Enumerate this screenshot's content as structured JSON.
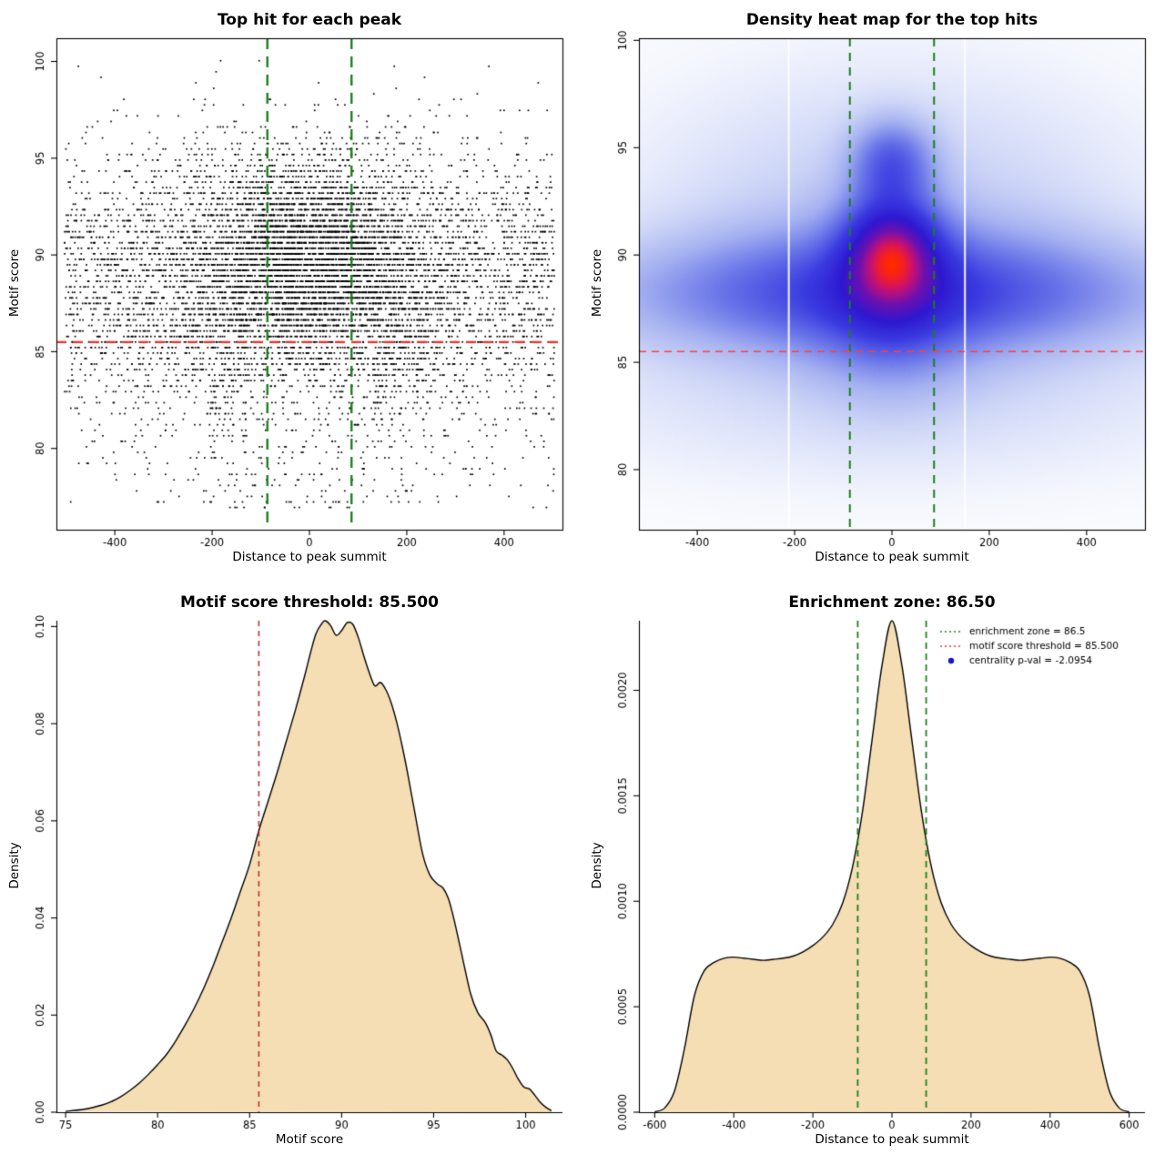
{
  "page": {
    "background": "#ffffff"
  },
  "chart_data": [
    {
      "id": "top-hits-scatter",
      "type": "scatter",
      "title": "Top hit for each peak",
      "xlabel": "Distance to peak summit",
      "ylabel": "Motif score",
      "xlim": [
        -520,
        520
      ],
      "ylim": [
        75.8,
        101.2
      ],
      "xticks": [
        -400,
        -200,
        0,
        200,
        400
      ],
      "yticks": [
        80,
        85,
        90,
        95,
        100
      ],
      "hlines": [
        {
          "y": 85.5,
          "color": "#ff2a2a",
          "dash": [
            11,
            7
          ],
          "width": 2.2
        }
      ],
      "vlines": [
        {
          "x": -86.5,
          "color": "#1e7e1e",
          "dash": [
            12,
            8
          ],
          "width": 2.4
        },
        {
          "x": 86.5,
          "color": "#1e7e1e",
          "dash": [
            12,
            8
          ],
          "width": 2.4
        }
      ],
      "points": {
        "n": 9500,
        "seed": 11,
        "marker_px": 1.7,
        "color": "#000000",
        "x_mix": {
          "uniform_frac": 0.44,
          "uniform_range": [
            -503,
            503
          ],
          "normal_sd": 150
        },
        "y_model": {
          "mean_center": 89.6,
          "sd_center": 2.8,
          "center_halfwidth": 130,
          "mean_outer": 88.8,
          "sd_outer": 3.4,
          "low_tail_frac": 0.055,
          "low_tail_range": [
            76.9,
            85.2
          ],
          "max": 100.15,
          "quantum": 0.285
        }
      }
    },
    {
      "id": "top-hits-heatmap",
      "type": "heatmap",
      "title": "Density heat map for the top hits",
      "xlabel": "Distance to peak summit",
      "ylabel": "Motif score",
      "xlim": [
        -520,
        520
      ],
      "ylim": [
        77.2,
        100.1
      ],
      "xticks": [
        -400,
        -200,
        0,
        200,
        400
      ],
      "yticks": [
        80,
        85,
        90,
        95,
        100
      ],
      "hlines": [
        {
          "y": 85.5,
          "color": "#ff4040",
          "dash": [
            8,
            6
          ],
          "width": 1.6
        }
      ],
      "vlines": [
        {
          "x": -86.5,
          "color": "#1e7e1e",
          "dash": [
            9,
            7
          ],
          "width": 2.0
        },
        {
          "x": 86.5,
          "color": "#1e7e1e",
          "dash": [
            9,
            7
          ],
          "width": 2.0
        }
      ],
      "white_streaks_x": [
        -212,
        150
      ],
      "kernels": [
        {
          "w": 0.55,
          "mx": 0,
          "sx": 300,
          "my": 88.4,
          "sy": 2.0
        },
        {
          "w": 0.3,
          "mx": 0,
          "sx": 430,
          "my": 88.2,
          "sy": 1.6
        },
        {
          "w": 1.0,
          "mx": 0,
          "sx": 70,
          "my": 89.9,
          "sy": 2.0
        },
        {
          "w": 0.55,
          "mx": 0,
          "sx": 58,
          "my": 90.3,
          "sy": 1.25
        },
        {
          "w": 0.6,
          "mx": 0,
          "sx": 55,
          "my": 94.3,
          "sy": 1.3
        },
        {
          "w": 0.25,
          "mx": 0,
          "sx": 110,
          "my": 86.3,
          "sy": 2.2
        },
        {
          "w": 0.18,
          "mx": 0,
          "sx": 330,
          "my": 91.5,
          "sy": 4.5
        },
        {
          "w": 0.1,
          "mx": 0,
          "sx": 480,
          "my": 84.0,
          "sy": 3.0
        }
      ],
      "gamma": 0.6,
      "colormap": [
        [
          0.0,
          "#ffffff"
        ],
        [
          0.06,
          "#f4f6fd"
        ],
        [
          0.16,
          "#d4dbf8"
        ],
        [
          0.3,
          "#a4b0f0"
        ],
        [
          0.44,
          "#6874e8"
        ],
        [
          0.58,
          "#3a3ae0"
        ],
        [
          0.72,
          "#2d18d0"
        ],
        [
          0.84,
          "#6c10b0"
        ],
        [
          0.92,
          "#c01078"
        ],
        [
          0.97,
          "#ee1c30"
        ],
        [
          1.0,
          "#ff2a00"
        ]
      ]
    },
    {
      "id": "motif-score-density",
      "type": "density",
      "title": "Motif score threshold: 85.500",
      "xlabel": "Motif score",
      "ylabel": "Density",
      "xlim": [
        74.5,
        102
      ],
      "ylim": [
        0,
        0.1012
      ],
      "xticks": [
        75,
        80,
        85,
        90,
        95,
        100
      ],
      "yticks": [
        0,
        0.02,
        0.04,
        0.06,
        0.08,
        0.1
      ],
      "ytick_labels": [
        "0.00",
        "0.02",
        "0.04",
        "0.06",
        "0.08",
        "0.10"
      ],
      "vlines": [
        {
          "x": 85.5,
          "color": "#bb3333",
          "dash": [
            6,
            5
          ],
          "width": 1.6
        }
      ],
      "fill": "#f5deb3",
      "stroke": "#000000",
      "curve": [
        [
          75,
          0.0002
        ],
        [
          76,
          0.0006
        ],
        [
          77,
          0.0015
        ],
        [
          77.5,
          0.0022
        ],
        [
          78,
          0.0032
        ],
        [
          78.5,
          0.0045
        ],
        [
          79,
          0.006
        ],
        [
          79.5,
          0.0078
        ],
        [
          80,
          0.0098
        ],
        [
          80.5,
          0.012
        ],
        [
          81,
          0.0148
        ],
        [
          81.5,
          0.018
        ],
        [
          82,
          0.0215
        ],
        [
          82.5,
          0.0255
        ],
        [
          83,
          0.03
        ],
        [
          83.5,
          0.035
        ],
        [
          84,
          0.04
        ],
        [
          84.5,
          0.0455
        ],
        [
          85,
          0.051
        ],
        [
          85.5,
          0.058
        ],
        [
          86,
          0.064
        ],
        [
          86.5,
          0.07
        ],
        [
          87,
          0.0765
        ],
        [
          87.5,
          0.083
        ],
        [
          88,
          0.09
        ],
        [
          88.3,
          0.0945
        ],
        [
          88.6,
          0.0985
        ],
        [
          88.9,
          0.1005
        ],
        [
          89.1,
          0.1012
        ],
        [
          89.4,
          0.1002
        ],
        [
          89.7,
          0.0982
        ],
        [
          90,
          0.0992
        ],
        [
          90.3,
          0.1008
        ],
        [
          90.6,
          0.1005
        ],
        [
          90.9,
          0.0978
        ],
        [
          91.2,
          0.094
        ],
        [
          91.5,
          0.0905
        ],
        [
          91.8,
          0.0878
        ],
        [
          92.1,
          0.0885
        ],
        [
          92.4,
          0.087
        ],
        [
          92.7,
          0.0842
        ],
        [
          93,
          0.0802
        ],
        [
          93.3,
          0.0752
        ],
        [
          93.6,
          0.0695
        ],
        [
          94,
          0.0612
        ],
        [
          94.4,
          0.0532
        ],
        [
          94.8,
          0.0488
        ],
        [
          95.2,
          0.047
        ],
        [
          95.5,
          0.0462
        ],
        [
          95.8,
          0.044
        ],
        [
          96.1,
          0.0398
        ],
        [
          96.5,
          0.033
        ],
        [
          97,
          0.0245
        ],
        [
          97.4,
          0.0205
        ],
        [
          97.8,
          0.0185
        ],
        [
          98.1,
          0.016
        ],
        [
          98.4,
          0.0126
        ],
        [
          98.7,
          0.0118
        ],
        [
          99,
          0.0108
        ],
        [
          99.3,
          0.009
        ],
        [
          99.6,
          0.0068
        ],
        [
          99.9,
          0.0052
        ],
        [
          100.2,
          0.0048
        ],
        [
          100.5,
          0.0035
        ],
        [
          100.8,
          0.002
        ],
        [
          101.1,
          0.001
        ],
        [
          101.4,
          0.0003
        ]
      ]
    },
    {
      "id": "summit-distance-density",
      "type": "density",
      "title": "Enrichment zone: 86.50",
      "xlabel": "Distance to peak summit",
      "ylabel": "Density",
      "xlim": [
        -640,
        640
      ],
      "ylim": [
        0,
        0.00233
      ],
      "xticks": [
        -600,
        -400,
        -200,
        0,
        200,
        400,
        600
      ],
      "yticks": [
        0,
        0.0005,
        0.001,
        0.0015,
        0.002
      ],
      "ytick_labels": [
        "0.0000",
        "0.0005",
        "0.0010",
        "0.0015",
        "0.0020"
      ],
      "vlines": [
        {
          "x": -86.5,
          "color": "#1e7e1e",
          "dash": [
            7,
            5
          ],
          "width": 1.8
        },
        {
          "x": 86.5,
          "color": "#1e7e1e",
          "dash": [
            7,
            5
          ],
          "width": 1.8
        }
      ],
      "fill": "#f5deb3",
      "stroke": "#000000",
      "curve": [
        [
          -600,
          2e-06
        ],
        [
          -575,
          2e-05
        ],
        [
          -550,
          0.0001
        ],
        [
          -525,
          0.0003
        ],
        [
          -500,
          0.00055
        ],
        [
          -475,
          0.00067
        ],
        [
          -450,
          0.00071
        ],
        [
          -425,
          0.00073
        ],
        [
          -400,
          0.000735
        ],
        [
          -375,
          0.00073
        ],
        [
          -350,
          0.000725
        ],
        [
          -325,
          0.00072
        ],
        [
          -300,
          0.000725
        ],
        [
          -275,
          0.00073
        ],
        [
          -250,
          0.00074
        ],
        [
          -225,
          0.00076
        ],
        [
          -200,
          0.00079
        ],
        [
          -175,
          0.00083
        ],
        [
          -150,
          0.00089
        ],
        [
          -125,
          0.00099
        ],
        [
          -100,
          0.00116
        ],
        [
          -75,
          0.00142
        ],
        [
          -50,
          0.00177
        ],
        [
          -25,
          0.00212
        ],
        [
          0,
          0.00233
        ],
        [
          25,
          0.00212
        ],
        [
          50,
          0.00177
        ],
        [
          75,
          0.00142
        ],
        [
          100,
          0.00116
        ],
        [
          125,
          0.00099
        ],
        [
          150,
          0.00089
        ],
        [
          175,
          0.00083
        ],
        [
          200,
          0.00079
        ],
        [
          225,
          0.00076
        ],
        [
          250,
          0.00074
        ],
        [
          275,
          0.00073
        ],
        [
          300,
          0.000725
        ],
        [
          325,
          0.00072
        ],
        [
          350,
          0.000725
        ],
        [
          375,
          0.00073
        ],
        [
          400,
          0.000735
        ],
        [
          425,
          0.00073
        ],
        [
          450,
          0.00071
        ],
        [
          475,
          0.00067
        ],
        [
          500,
          0.00055
        ],
        [
          525,
          0.0003
        ],
        [
          550,
          0.0001
        ],
        [
          575,
          2e-05
        ],
        [
          600,
          2e-06
        ]
      ],
      "legend": {
        "items": [
          {
            "type": "dotted-line",
            "color": "#1e7e1e",
            "label": "enrichment zone = 86.5"
          },
          {
            "type": "dotted-line",
            "color": "#ee3333",
            "label": "motif score threshold = 85.500"
          },
          {
            "type": "point",
            "color": "#1515cc",
            "label": "centrality p-val = -2.0954"
          }
        ]
      }
    }
  ]
}
